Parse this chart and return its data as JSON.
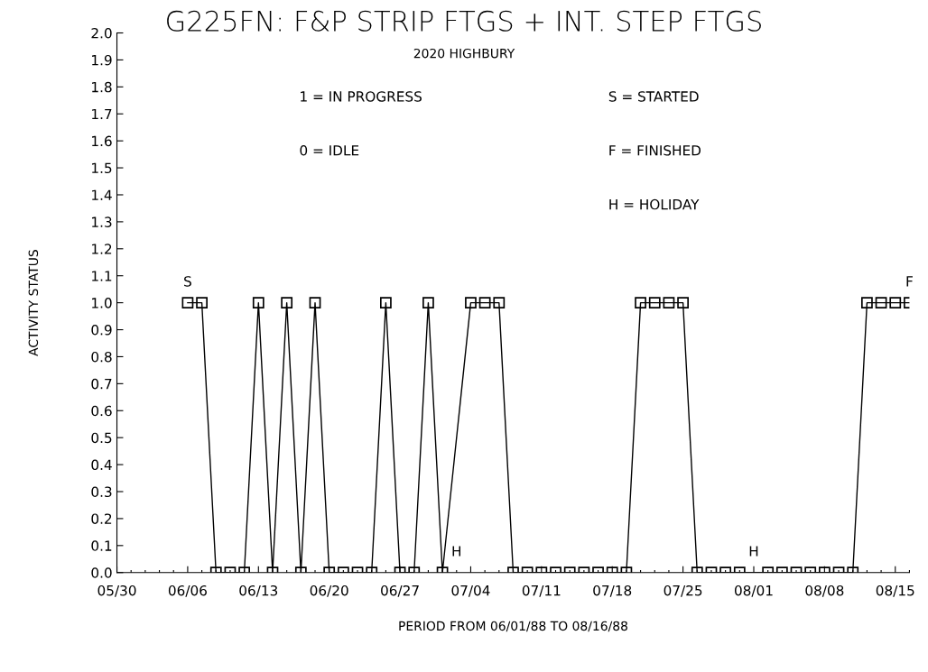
{
  "chart_data": {
    "type": "line",
    "title": "G225FN: F&P STRIP FTGS + INT. STEP FTGS",
    "subtitle": "2020 HIGHBURY",
    "xlabel": "PERIOD FROM 06/01/88 TO 08/16/88",
    "ylabel": "ACTIVITY STATUS",
    "categories": [
      "05/30",
      null,
      null,
      null,
      null,
      "06/06",
      null,
      null,
      null,
      null,
      "06/13",
      null,
      null,
      null,
      null,
      "06/20",
      null,
      null,
      null,
      null,
      "06/27",
      null,
      null,
      null,
      null,
      "07/04",
      null,
      null,
      null,
      null,
      "07/11",
      null,
      null,
      null,
      null,
      "07/18",
      null,
      null,
      null,
      null,
      "07/25",
      null,
      null,
      null,
      null,
      "08/01",
      null,
      null,
      null,
      null,
      "08/08",
      null,
      null,
      null,
      null,
      "08/15",
      null
    ],
    "series": [
      {
        "color": "#000000",
        "values": [
          null,
          null,
          null,
          null,
          null,
          1,
          1,
          0,
          0,
          0,
          1,
          0,
          1,
          0,
          1,
          0,
          0,
          0,
          0,
          1,
          0,
          0,
          1,
          0,
          null,
          1,
          1,
          1,
          0,
          0,
          0,
          0,
          0,
          0,
          0,
          0,
          0,
          1,
          1,
          1,
          1,
          0,
          0,
          0,
          0,
          null,
          0,
          0,
          0,
          0,
          0,
          0,
          0,
          1,
          1,
          1,
          1
        ]
      }
    ],
    "marker": "square",
    "line_style": "solid",
    "grid": false,
    "legend": false,
    "ylim": [
      0,
      2
    ],
    "yticks": [
      {
        "value": 0,
        "label": "0.0"
      },
      {
        "value": 0.1,
        "label": "0.1"
      },
      {
        "value": 0.2,
        "label": "0.2"
      },
      {
        "value": 0.3,
        "label": "0.3"
      },
      {
        "value": 0.4,
        "label": "0.4"
      },
      {
        "value": 0.5,
        "label": "0.5"
      },
      {
        "value": 0.6,
        "label": "0.6"
      },
      {
        "value": 0.7,
        "label": "0.7"
      },
      {
        "value": 0.8,
        "label": "0.8"
      },
      {
        "value": 0.9,
        "label": "0.9"
      },
      {
        "value": 1.0,
        "label": "1.0"
      },
      {
        "value": 1.1,
        "label": "1.1"
      },
      {
        "value": 1.2,
        "label": "1.2"
      },
      {
        "value": 1.3,
        "label": "1.3"
      },
      {
        "value": 1.4,
        "label": "1.4"
      },
      {
        "value": 1.5,
        "label": "1.5"
      },
      {
        "value": 1.6,
        "label": "1.6"
      },
      {
        "value": 1.7,
        "label": "1.7"
      },
      {
        "value": 1.8,
        "label": "1.8"
      },
      {
        "value": 1.9,
        "label": "1.9"
      },
      {
        "value": 2.0,
        "label": "2.0"
      }
    ],
    "annotations": [
      "S",
      "F",
      "H",
      "H",
      "1 = IN PROGRESS",
      "0 = IDLE",
      "S = STARTED",
      "F = FINISHED",
      "H = HOLIDAY"
    ]
  }
}
